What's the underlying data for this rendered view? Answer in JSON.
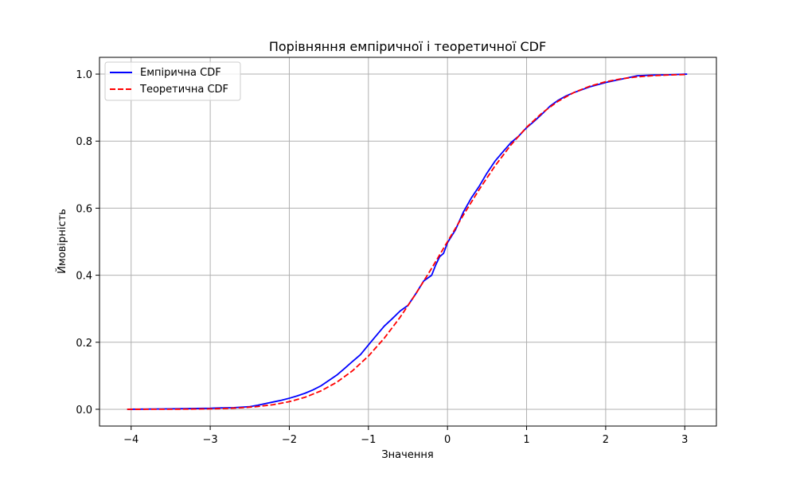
{
  "chart_data": {
    "type": "line",
    "title": "Порівняння емпіричної і теоретичної CDF",
    "xlabel": "Значення",
    "ylabel": "Ймовірність",
    "xlim": [
      -4.4,
      3.4
    ],
    "ylim": [
      -0.05,
      1.05
    ],
    "xticks": [
      -4,
      -3,
      -2,
      -1,
      0,
      1,
      2,
      3
    ],
    "xtick_labels": [
      "−4",
      "−3",
      "−2",
      "−1",
      "0",
      "1",
      "2",
      "3"
    ],
    "yticks": [
      0.0,
      0.2,
      0.4,
      0.6,
      0.8,
      1.0
    ],
    "ytick_labels": [
      "0.0",
      "0.2",
      "0.4",
      "0.6",
      "0.8",
      "1.0"
    ],
    "grid": true,
    "legend_position": "top-left",
    "series": [
      {
        "name": "Емпірична CDF",
        "color": "#0000ff",
        "style": "solid",
        "x": [
          -4.05,
          -3.6,
          -3.0,
          -2.9,
          -2.7,
          -2.5,
          -2.4,
          -2.3,
          -2.2,
          -2.1,
          -2.0,
          -1.9,
          -1.8,
          -1.7,
          -1.6,
          -1.5,
          -1.4,
          -1.3,
          -1.2,
          -1.1,
          -1.0,
          -0.9,
          -0.8,
          -0.7,
          -0.6,
          -0.5,
          -0.4,
          -0.3,
          -0.2,
          -0.15,
          -0.1,
          -0.05,
          0.0,
          0.1,
          0.2,
          0.3,
          0.4,
          0.5,
          0.6,
          0.7,
          0.8,
          0.9,
          1.0,
          1.1,
          1.2,
          1.3,
          1.4,
          1.5,
          1.6,
          1.8,
          2.0,
          2.2,
          2.3,
          2.4,
          2.6,
          2.8,
          3.03
        ],
        "values": [
          0.0,
          0.001,
          0.003,
          0.004,
          0.005,
          0.008,
          0.012,
          0.017,
          0.022,
          0.027,
          0.033,
          0.04,
          0.048,
          0.058,
          0.07,
          0.086,
          0.102,
          0.122,
          0.143,
          0.163,
          0.192,
          0.22,
          0.248,
          0.27,
          0.293,
          0.31,
          0.345,
          0.383,
          0.4,
          0.43,
          0.455,
          0.465,
          0.497,
          0.535,
          0.588,
          0.63,
          0.665,
          0.705,
          0.74,
          0.768,
          0.795,
          0.815,
          0.84,
          0.86,
          0.882,
          0.905,
          0.922,
          0.935,
          0.945,
          0.962,
          0.975,
          0.985,
          0.99,
          0.995,
          0.997,
          0.998,
          1.0
        ]
      },
      {
        "name": "Теоретична CDF",
        "color": "#ff0000",
        "style": "dashed",
        "x": [
          -4.05,
          -3.8,
          -3.6,
          -3.4,
          -3.2,
          -3.0,
          -2.8,
          -2.6,
          -2.4,
          -2.2,
          -2.0,
          -1.8,
          -1.6,
          -1.4,
          -1.2,
          -1.0,
          -0.8,
          -0.6,
          -0.4,
          -0.2,
          0.0,
          0.2,
          0.4,
          0.6,
          0.8,
          1.0,
          1.2,
          1.4,
          1.6,
          1.8,
          2.0,
          2.2,
          2.4,
          2.6,
          2.8,
          3.03
        ],
        "values": [
          0.0,
          0.0001,
          0.0002,
          0.0003,
          0.0007,
          0.0013,
          0.0026,
          0.0047,
          0.0082,
          0.0139,
          0.0228,
          0.0359,
          0.0548,
          0.0808,
          0.1151,
          0.1587,
          0.2119,
          0.2743,
          0.3446,
          0.4207,
          0.5,
          0.5793,
          0.6554,
          0.7257,
          0.7881,
          0.8413,
          0.8849,
          0.9192,
          0.9452,
          0.9641,
          0.9772,
          0.9861,
          0.9918,
          0.9953,
          0.9974,
          0.9988
        ]
      }
    ]
  }
}
